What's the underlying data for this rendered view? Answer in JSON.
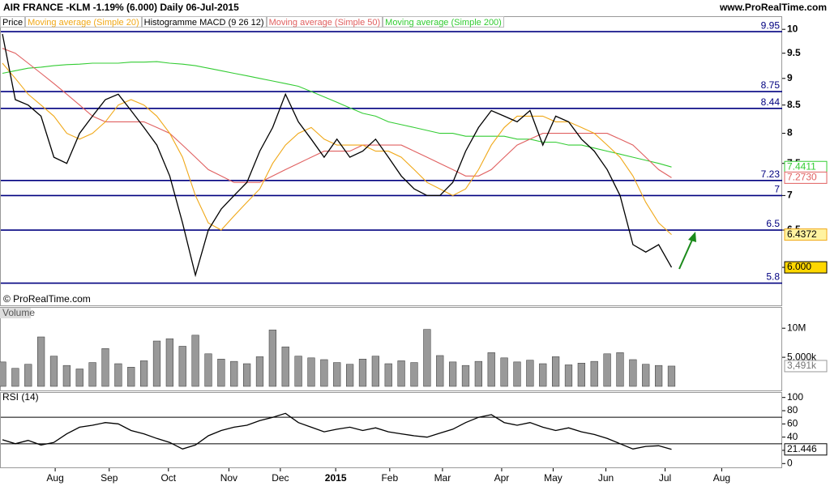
{
  "header": {
    "title": "AIR FRANCE -KLM  -1.19% (6.000)  Daily  06-Jul-2015",
    "site": "www.ProRealTime.com"
  },
  "chart_data": [
    {
      "type": "line",
      "title": "Price",
      "log_scale": true,
      "grid": false,
      "xlim": [
        0,
        60.6
      ],
      "xticks": [
        {
          "value": 4.1,
          "label": "Aug"
        },
        {
          "value": 8.3,
          "label": "Sep"
        },
        {
          "value": 12.9,
          "label": "Oct"
        },
        {
          "value": 17.6,
          "label": "Nov"
        },
        {
          "value": 21.6,
          "label": "Dec"
        },
        {
          "value": 25.9,
          "label": "2015"
        },
        {
          "value": 30.1,
          "label": "Feb"
        },
        {
          "value": 34.2,
          "label": "Mar"
        },
        {
          "value": 38.8,
          "label": "Apr"
        },
        {
          "value": 42.8,
          "label": "May"
        },
        {
          "value": 46.9,
          "label": "Jun"
        },
        {
          "value": 51.5,
          "label": "Jul"
        },
        {
          "value": 55.9,
          "label": "Aug"
        }
      ],
      "ylim": [
        5.53,
        10.25
      ],
      "yticks": [
        10,
        9.5,
        9,
        8.5,
        8,
        7.5,
        7,
        6.5,
        6
      ],
      "levels": [
        9.95,
        8.75,
        8.44,
        7.23,
        7,
        6.5,
        5.8
      ],
      "level_color": "#000080",
      "annotation": "© ProRealTime.com",
      "extra_legend": "Histogramme MACD (9 26 12)",
      "series": [
        {
          "name": "Price",
          "color": "#000000",
          "values": [
            9.9,
            8.6,
            8.5,
            8.3,
            7.6,
            7.5,
            8.0,
            8.3,
            8.6,
            8.7,
            8.4,
            8.1,
            7.8,
            7.3,
            6.6,
            5.9,
            6.5,
            6.8,
            7.0,
            7.2,
            7.7,
            8.1,
            8.7,
            8.2,
            7.9,
            7.6,
            7.9,
            7.6,
            7.7,
            7.9,
            7.6,
            7.3,
            7.1,
            7.0,
            7.0,
            7.2,
            7.7,
            8.1,
            8.4,
            8.3,
            8.2,
            8.4,
            7.8,
            8.3,
            8.2,
            7.9,
            7.7,
            7.4,
            7.0,
            6.3,
            6.2,
            6.3,
            6.0
          ],
          "value_labels": [
            null,
            null,
            null,
            null,
            null,
            null,
            null,
            null,
            null,
            null,
            null,
            null,
            null,
            null,
            null,
            null,
            null,
            null,
            null,
            null,
            null,
            null,
            null,
            null,
            null,
            null,
            null,
            null,
            null,
            null,
            null,
            null,
            null,
            null,
            null,
            null,
            null,
            null,
            null,
            null,
            null,
            null,
            null,
            null,
            null,
            null,
            null,
            null,
            null,
            null,
            null,
            null,
            "6.000"
          ]
        },
        {
          "name": "Moving average (Simple 20)",
          "color": "#f0a818",
          "values": [
            9.3,
            9.0,
            8.7,
            8.5,
            8.3,
            8.0,
            7.9,
            8.0,
            8.2,
            8.5,
            8.6,
            8.5,
            8.3,
            8.0,
            7.6,
            7.0,
            6.6,
            6.5,
            6.7,
            6.9,
            7.1,
            7.5,
            7.8,
            8.0,
            8.1,
            7.9,
            7.8,
            7.8,
            7.8,
            7.7,
            7.7,
            7.6,
            7.4,
            7.2,
            7.1,
            7.0,
            7.1,
            7.4,
            7.8,
            8.1,
            8.3,
            8.3,
            8.3,
            8.2,
            8.2,
            8.1,
            8.0,
            7.8,
            7.6,
            7.3,
            6.9,
            6.6,
            6.4372
          ]
        },
        {
          "name": "Moving average (Simple 50)",
          "color": "#e06060",
          "values": [
            9.6,
            9.5,
            9.3,
            9.1,
            8.9,
            8.7,
            8.5,
            8.3,
            8.2,
            8.2,
            8.2,
            8.2,
            8.1,
            8.0,
            7.8,
            7.6,
            7.4,
            7.3,
            7.2,
            7.2,
            7.2,
            7.3,
            7.4,
            7.5,
            7.6,
            7.7,
            7.7,
            7.7,
            7.8,
            7.8,
            7.8,
            7.8,
            7.7,
            7.6,
            7.5,
            7.4,
            7.3,
            7.3,
            7.4,
            7.6,
            7.8,
            7.9,
            8.0,
            8.0,
            8.0,
            8.0,
            8.0,
            8.0,
            7.9,
            7.8,
            7.6,
            7.4,
            7.273
          ],
          "value_labels": [
            null,
            null,
            null,
            null,
            null,
            null,
            null,
            null,
            null,
            null,
            null,
            null,
            null,
            null,
            null,
            null,
            null,
            null,
            null,
            null,
            null,
            null,
            null,
            null,
            null,
            null,
            null,
            null,
            null,
            null,
            null,
            null,
            null,
            null,
            null,
            null,
            null,
            null,
            null,
            null,
            null,
            null,
            null,
            null,
            null,
            null,
            null,
            null,
            null,
            null,
            null,
            null,
            "7.2730"
          ]
        },
        {
          "name": "Moving average (Simple 200)",
          "color": "#33cc33",
          "values": [
            9.1,
            9.15,
            9.2,
            9.22,
            9.25,
            9.27,
            9.28,
            9.3,
            9.3,
            9.3,
            9.32,
            9.32,
            9.33,
            9.3,
            9.28,
            9.25,
            9.2,
            9.15,
            9.1,
            9.05,
            9.0,
            8.95,
            8.9,
            8.85,
            8.75,
            8.65,
            8.55,
            8.45,
            8.35,
            8.3,
            8.2,
            8.15,
            8.1,
            8.05,
            8.0,
            8.0,
            7.95,
            7.95,
            7.95,
            7.95,
            7.9,
            7.9,
            7.85,
            7.85,
            7.8,
            7.8,
            7.75,
            7.7,
            7.65,
            7.6,
            7.55,
            7.5,
            7.4411
          ]
        }
      ]
    },
    {
      "type": "bar",
      "title": "Volume",
      "color": "#999999",
      "ylim": [
        0,
        11700000
      ],
      "yticks": [
        {
          "value": 5000000,
          "label": "5,000k"
        },
        {
          "value": 10000000,
          "label": "10M"
        }
      ],
      "values": [
        4200000,
        3100000,
        3800000,
        8500000,
        5200000,
        3600000,
        3000000,
        4100000,
        6500000,
        3900000,
        3300000,
        4400000,
        7800000,
        8200000,
        6900000,
        8800000,
        5600000,
        4700000,
        4300000,
        3900000,
        5100000,
        9700000,
        6800000,
        5200000,
        4900000,
        4600000,
        4100000,
        3800000,
        4700000,
        5200000,
        3900000,
        4400000,
        4100000,
        9800000,
        5300000,
        4200000,
        3600000,
        4300000,
        5800000,
        4900000,
        4200000,
        4500000,
        3900000,
        5100000,
        3700000,
        4000000,
        4300000,
        5600000,
        5800000,
        4600000,
        3800000,
        3600000,
        3491000
      ],
      "value_labels": [
        null,
        null,
        null,
        null,
        null,
        null,
        null,
        null,
        null,
        null,
        null,
        null,
        null,
        null,
        null,
        null,
        null,
        null,
        null,
        null,
        null,
        null,
        null,
        null,
        null,
        null,
        null,
        null,
        null,
        null,
        null,
        null,
        null,
        null,
        null,
        null,
        null,
        null,
        null,
        null,
        null,
        null,
        null,
        null,
        null,
        null,
        null,
        null,
        null,
        null,
        null,
        null,
        "3,491k"
      ]
    },
    {
      "type": "line",
      "title": "RSI (14)",
      "color": "#000000",
      "ylim": [
        -7,
        107
      ],
      "yticks": [
        0,
        20,
        40,
        60,
        80,
        100
      ],
      "levels": [
        70,
        30
      ],
      "values": [
        36,
        30,
        35,
        28,
        32,
        45,
        55,
        58,
        62,
        60,
        50,
        45,
        38,
        32,
        22,
        28,
        42,
        50,
        55,
        58,
        65,
        70,
        76,
        62,
        55,
        48,
        52,
        55,
        50,
        54,
        48,
        45,
        42,
        40,
        46,
        52,
        62,
        70,
        74,
        62,
        58,
        62,
        55,
        50,
        54,
        48,
        44,
        38,
        30,
        22,
        26,
        27,
        21.446
      ]
    }
  ]
}
